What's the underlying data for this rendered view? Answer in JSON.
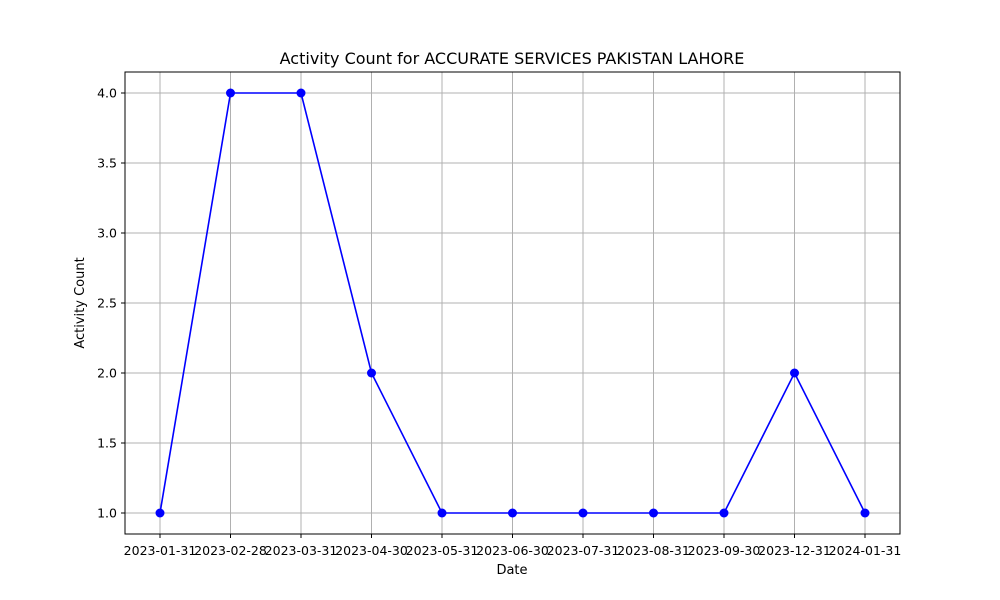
{
  "chart_data": {
    "type": "line",
    "title": "Activity Count for ACCURATE SERVICES PAKISTAN LAHORE",
    "xlabel": "Date",
    "ylabel": "Activity Count",
    "categories": [
      "2023-01-31",
      "2023-02-28",
      "2023-03-31",
      "2023-04-30",
      "2023-05-31",
      "2023-06-30",
      "2023-07-31",
      "2023-08-31",
      "2023-09-30",
      "2023-12-31",
      "2024-01-31"
    ],
    "series": [
      {
        "values": [
          1,
          4,
          4,
          2,
          1,
          1,
          1,
          1,
          1,
          2,
          1
        ],
        "color": "#0000ff",
        "marker": "circle"
      }
    ],
    "y_ticks": [
      1.0,
      1.5,
      2.0,
      2.5,
      3.0,
      3.5,
      4.0
    ],
    "y_tick_labels": [
      "1.0",
      "1.5",
      "2.0",
      "2.5",
      "3.0",
      "3.5",
      "4.0"
    ],
    "ylim": [
      0.85,
      4.15
    ],
    "grid": true,
    "grid_color": "#b0b0b0",
    "line_color": "#0000ff"
  }
}
